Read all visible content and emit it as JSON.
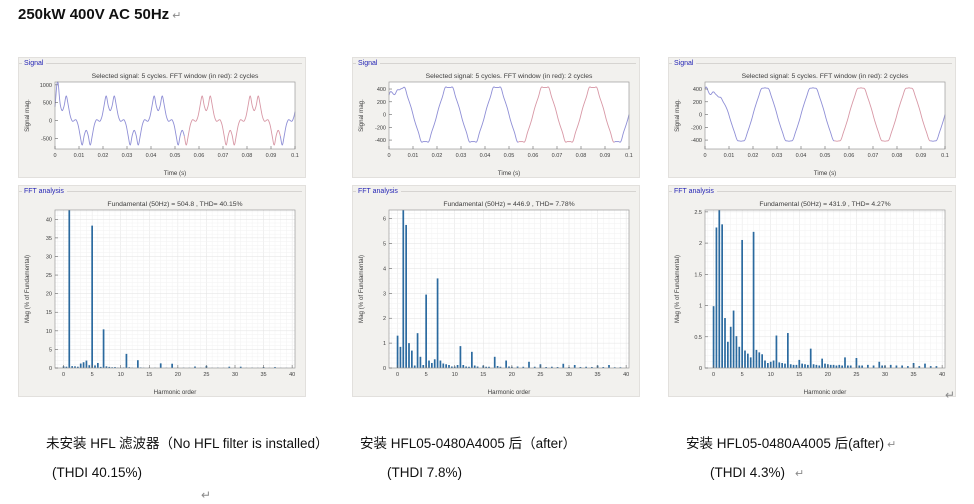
{
  "page": {
    "title": "250kW 400V AC 50Hz",
    "return_mark": "↵"
  },
  "marks": {
    "after_fft3": "↵",
    "bottom_left": "↵"
  },
  "columns": [
    {
      "caption_line1": "未安装 HFL 滤波器（No HFL filter is installed）",
      "caption_return1": "",
      "caption_line2": "(THDI 40.15%)",
      "caption_return2": ""
    },
    {
      "caption_line1": "安装 HFL05-0480A4005 后（after）",
      "caption_return1": "",
      "caption_line2": "(THDI 7.8%)",
      "caption_return2": ""
    },
    {
      "caption_line1": "安装 HFL05-0480A4005 后(after)",
      "caption_return1": "↵",
      "caption_line2": "(THDI 4.3%)",
      "caption_return2": "↵"
    }
  ],
  "chart_data": [
    {
      "type": "line",
      "panel_label": "Signal",
      "title": "Selected signal: 5 cycles. FFT window (in red): 2 cycles",
      "xlabel": "Time (s)",
      "ylabel": "Signal mag.",
      "xlim": [
        0,
        0.1
      ],
      "ylim": [
        -800,
        1080
      ],
      "xticks": [
        0,
        0.01,
        0.02,
        0.03,
        0.04,
        0.05,
        0.06,
        0.07,
        0.08,
        0.09,
        0.1
      ],
      "yticks": [
        -500,
        0,
        500,
        1000
      ],
      "grid": false,
      "fundamental_hz": 50,
      "fft_window_s": [
        0.054,
        0.094
      ],
      "colors": {
        "main": "#8f8fd6",
        "window": "#d898a6"
      },
      "waveform": {
        "amplitude": 504.8,
        "theta_offset_s": 0.018,
        "harmonics": [
          [
            1,
            100
          ],
          [
            5,
            -38.3
          ],
          [
            7,
            10.4
          ],
          [
            11,
            -3.8
          ],
          [
            13,
            2.1
          ],
          [
            17,
            -1.25
          ],
          [
            19,
            1.15
          ]
        ],
        "transients": [
          {
            "t0": 0.0009,
            "w": 0.0008,
            "peak": 470
          }
        ]
      }
    },
    {
      "type": "bar",
      "panel_label": "FFT analysis",
      "title": "Fundamental (50Hz) = 504.8 , THD= 40.15%",
      "fundamental_hz": 50,
      "fundamental_value": 504.8,
      "thd_percent": 40.15,
      "xlabel": "Harmonic order",
      "ylabel": "Mag (% of Fundamental)",
      "xlim": [
        -1.5,
        40.5
      ],
      "ylim": [
        0,
        42.5
      ],
      "xticks": [
        0,
        5,
        10,
        15,
        20,
        25,
        30,
        35,
        40
      ],
      "yticks": [
        0,
        5,
        10,
        15,
        20,
        25,
        30,
        35,
        40
      ],
      "yminor": 1,
      "grid": true,
      "bar_color": "#2b6a9f",
      "note": "fundamental bar at order 1 equals 100% and is clipped at axis top",
      "bars": [
        [
          0,
          0.45
        ],
        [
          0.5,
          0.35
        ],
        [
          1,
          100
        ],
        [
          1.5,
          0.5
        ],
        [
          2,
          0.45
        ],
        [
          2.5,
          0.35
        ],
        [
          3,
          1.2
        ],
        [
          3.5,
          1.55
        ],
        [
          4,
          2.0
        ],
        [
          4.5,
          0.75
        ],
        [
          5,
          38.3
        ],
        [
          5.5,
          0.7
        ],
        [
          6,
          1.35
        ],
        [
          6.5,
          0.3
        ],
        [
          7,
          10.4
        ],
        [
          7.5,
          0.45
        ],
        [
          8,
          0.3
        ],
        [
          8.5,
          0.2
        ],
        [
          9,
          0.25
        ],
        [
          9.5,
          0.1
        ],
        [
          10,
          0.1
        ],
        [
          10.5,
          0.15
        ],
        [
          11,
          3.8
        ],
        [
          11.5,
          0.2
        ],
        [
          12,
          0.1
        ],
        [
          13,
          2.1
        ],
        [
          13.5,
          0.15
        ],
        [
          14,
          0.08
        ],
        [
          15,
          0.1
        ],
        [
          16,
          0.08
        ],
        [
          17,
          1.25
        ],
        [
          18,
          0.08
        ],
        [
          19,
          1.15
        ],
        [
          20,
          0.08
        ],
        [
          21,
          0.1
        ],
        [
          22,
          0.08
        ],
        [
          23,
          0.4
        ],
        [
          24,
          0.08
        ],
        [
          25,
          0.6
        ],
        [
          26,
          0.06
        ],
        [
          27,
          0.1
        ],
        [
          28,
          0.06
        ],
        [
          29,
          0.35
        ],
        [
          30,
          0.06
        ],
        [
          31,
          0.35
        ],
        [
          32,
          0.06
        ],
        [
          33,
          0.1
        ],
        [
          34,
          0.06
        ],
        [
          35,
          0.25
        ],
        [
          36,
          0.06
        ],
        [
          37,
          0.25
        ],
        [
          38,
          0.05
        ],
        [
          39,
          0.05
        ]
      ]
    },
    {
      "type": "line",
      "panel_label": "Signal",
      "title": "Selected signal: 5 cycles. FFT window (in red): 2 cycles",
      "xlabel": "Time (s)",
      "ylabel": "Signal mag.",
      "xlim": [
        0,
        0.1
      ],
      "ylim": [
        -540,
        510
      ],
      "xticks": [
        0,
        0.01,
        0.02,
        0.03,
        0.04,
        0.05,
        0.06,
        0.07,
        0.08,
        0.09,
        0.1
      ],
      "yticks": [
        -400,
        -200,
        0,
        200,
        400
      ],
      "grid": false,
      "fundamental_hz": 50,
      "fft_window_s": [
        0.054,
        0.094
      ],
      "colors": {
        "main": "#8f8fd6",
        "window": "#d898a6"
      },
      "waveform": {
        "amplitude": 446.9,
        "theta_offset_s": 0,
        "harmonics": [
          [
            1,
            100
          ],
          [
            5,
            -2.95
          ],
          [
            7,
            3.6
          ],
          [
            11,
            -0.88
          ],
          [
            13,
            0.65
          ]
        ],
        "transients": [
          {
            "t0": 0,
            "w": 0.002,
            "peak": 310
          },
          {
            "t0": 0.003,
            "w": 0.002,
            "peak": -60
          }
        ]
      }
    },
    {
      "type": "bar",
      "panel_label": "FFT analysis",
      "title": "Fundamental (50Hz) = 446.9 , THD= 7.78%",
      "fundamental_hz": 50,
      "fundamental_value": 446.9,
      "thd_percent": 7.78,
      "xlabel": "Harmonic order",
      "ylabel": "Mag (% of Fundamental)",
      "xlim": [
        -1.5,
        40.5
      ],
      "ylim": [
        0,
        6.35
      ],
      "xticks": [
        0,
        5,
        10,
        15,
        20,
        25,
        30,
        35,
        40
      ],
      "yticks": [
        0,
        1,
        2,
        3,
        4,
        5,
        6
      ],
      "yminor": 0.2,
      "grid": true,
      "bar_color": "#2b6a9f",
      "note": "fundamental bar at order 1 equals 100% and is clipped at axis top",
      "bars": [
        [
          0,
          1.3
        ],
        [
          0.5,
          0.85
        ],
        [
          1,
          100
        ],
        [
          1.5,
          5.75
        ],
        [
          2,
          1.0
        ],
        [
          2.5,
          0.7
        ],
        [
          3,
          0.1
        ],
        [
          3.5,
          1.4
        ],
        [
          4,
          0.45
        ],
        [
          4.5,
          0.12
        ],
        [
          5,
          2.95
        ],
        [
          5.5,
          0.3
        ],
        [
          6,
          0.2
        ],
        [
          6.5,
          0.35
        ],
        [
          7,
          3.6
        ],
        [
          7.5,
          0.3
        ],
        [
          8,
          0.18
        ],
        [
          8.5,
          0.15
        ],
        [
          9,
          0.12
        ],
        [
          9.5,
          0.06
        ],
        [
          10,
          0.06
        ],
        [
          10.5,
          0.12
        ],
        [
          11,
          0.88
        ],
        [
          11.5,
          0.12
        ],
        [
          12,
          0.06
        ],
        [
          12.5,
          0.05
        ],
        [
          13,
          0.65
        ],
        [
          13.5,
          0.1
        ],
        [
          14,
          0.06
        ],
        [
          15,
          0.1
        ],
        [
          15.5,
          0.05
        ],
        [
          16,
          0.05
        ],
        [
          17,
          0.45
        ],
        [
          17.5,
          0.08
        ],
        [
          18,
          0.05
        ],
        [
          19,
          0.3
        ],
        [
          19.5,
          0.06
        ],
        [
          20,
          0.05
        ],
        [
          21,
          0.06
        ],
        [
          22,
          0.05
        ],
        [
          23,
          0.25
        ],
        [
          24,
          0.05
        ],
        [
          25,
          0.15
        ],
        [
          26,
          0.04
        ],
        [
          27,
          0.05
        ],
        [
          28,
          0.04
        ],
        [
          29,
          0.17
        ],
        [
          30,
          0.04
        ],
        [
          31,
          0.12
        ],
        [
          32,
          0.04
        ],
        [
          33,
          0.05
        ],
        [
          34,
          0.04
        ],
        [
          35,
          0.1
        ],
        [
          36,
          0.04
        ],
        [
          37,
          0.12
        ],
        [
          38,
          0.03
        ],
        [
          39,
          0.03
        ]
      ]
    },
    {
      "type": "line",
      "panel_label": "Signal",
      "title": "Selected signal: 5 cycles. FFT window (in red): 2 cycles",
      "xlabel": "Time (s)",
      "ylabel": "Signal mag.",
      "xlim": [
        0,
        0.1
      ],
      "ylim": [
        -540,
        510
      ],
      "xticks": [
        0,
        0.01,
        0.02,
        0.03,
        0.04,
        0.05,
        0.06,
        0.07,
        0.08,
        0.09,
        0.1
      ],
      "yticks": [
        -400,
        -200,
        0,
        200,
        400
      ],
      "grid": false,
      "fundamental_hz": 50,
      "fft_window_s": [
        0.054,
        0.094
      ],
      "colors": {
        "main": "#8f8fd6",
        "window": "#d898a6"
      },
      "waveform": {
        "amplitude": 431.9,
        "theta_offset_s": 0,
        "harmonics": [
          [
            1,
            100
          ],
          [
            5,
            -2.05
          ],
          [
            7,
            2.18
          ],
          [
            11,
            -0.52
          ],
          [
            13,
            0.56
          ]
        ],
        "transients": [
          {
            "t0": 0,
            "w": 0.0016,
            "peak": 400
          },
          {
            "t0": 0.006,
            "w": 0.0025,
            "peak": -140
          }
        ]
      }
    },
    {
      "type": "bar",
      "panel_label": "FFT analysis",
      "title": "Fundamental (50Hz) = 431.9 , THD= 4.27%",
      "fundamental_hz": 50,
      "fundamental_value": 431.9,
      "thd_percent": 4.27,
      "xlabel": "Harmonic order",
      "ylabel": "Mag (% of Fundamental)",
      "xlim": [
        -1.5,
        40.5
      ],
      "ylim": [
        0,
        2.53
      ],
      "xticks": [
        0,
        5,
        10,
        15,
        20,
        25,
        30,
        35,
        40
      ],
      "yticks": [
        0,
        0.5,
        1,
        1.5,
        2,
        2.5
      ],
      "yminor": 0.1,
      "grid": true,
      "bar_color": "#2b6a9f",
      "note": "fundamental bar at order 1 equals 100% and is clipped at axis top",
      "bars": [
        [
          0,
          0.99
        ],
        [
          0.5,
          2.25
        ],
        [
          1,
          100
        ],
        [
          1.5,
          2.3
        ],
        [
          2,
          0.8
        ],
        [
          2.5,
          0.42
        ],
        [
          3,
          0.66
        ],
        [
          3.5,
          0.92
        ],
        [
          4,
          0.51
        ],
        [
          4.5,
          0.34
        ],
        [
          5,
          2.05
        ],
        [
          5.5,
          0.28
        ],
        [
          6,
          0.23
        ],
        [
          6.5,
          0.17
        ],
        [
          7,
          2.18
        ],
        [
          7.5,
          0.29
        ],
        [
          8,
          0.25
        ],
        [
          8.5,
          0.22
        ],
        [
          9,
          0.12
        ],
        [
          9.5,
          0.08
        ],
        [
          10,
          0.1
        ],
        [
          10.5,
          0.12
        ],
        [
          11,
          0.52
        ],
        [
          11.5,
          0.09
        ],
        [
          12,
          0.08
        ],
        [
          12.5,
          0.07
        ],
        [
          13,
          0.56
        ],
        [
          13.5,
          0.06
        ],
        [
          14,
          0.05
        ],
        [
          14.5,
          0.05
        ],
        [
          15,
          0.13
        ],
        [
          15.5,
          0.07
        ],
        [
          16,
          0.06
        ],
        [
          16.5,
          0.05
        ],
        [
          17,
          0.31
        ],
        [
          17.5,
          0.06
        ],
        [
          18,
          0.05
        ],
        [
          18.5,
          0.04
        ],
        [
          19,
          0.15
        ],
        [
          19.5,
          0.07
        ],
        [
          20,
          0.06
        ],
        [
          20.5,
          0.05
        ],
        [
          21,
          0.05
        ],
        [
          21.5,
          0.04
        ],
        [
          22,
          0.05
        ],
        [
          22.5,
          0.04
        ],
        [
          23,
          0.17
        ],
        [
          23.5,
          0.04
        ],
        [
          24,
          0.04
        ],
        [
          25,
          0.16
        ],
        [
          25.5,
          0.04
        ],
        [
          26,
          0.04
        ],
        [
          27,
          0.05
        ],
        [
          28,
          0.04
        ],
        [
          29,
          0.1
        ],
        [
          29.5,
          0.04
        ],
        [
          30,
          0.04
        ],
        [
          31,
          0.05
        ],
        [
          32,
          0.04
        ],
        [
          33,
          0.04
        ],
        [
          34,
          0.03
        ],
        [
          35,
          0.08
        ],
        [
          36,
          0.03
        ],
        [
          37,
          0.07
        ],
        [
          38,
          0.03
        ],
        [
          39,
          0.03
        ]
      ]
    }
  ]
}
